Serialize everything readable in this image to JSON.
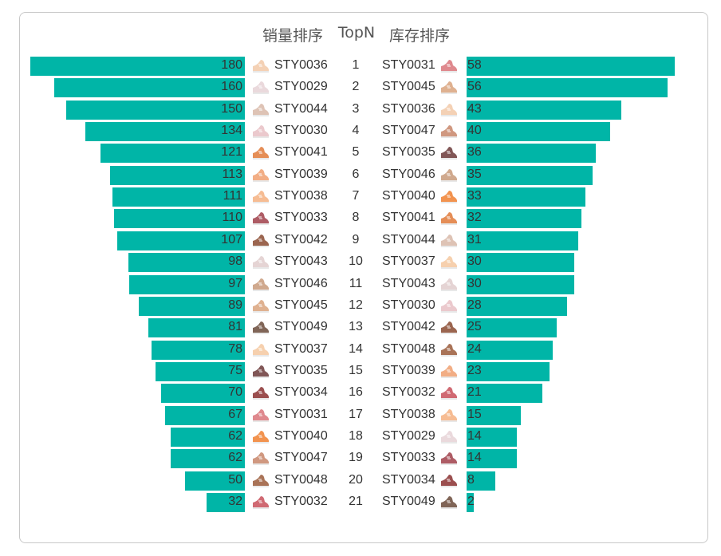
{
  "chart_data": {
    "type": "bar",
    "title_left": "销量排序",
    "title_center": "TopN",
    "title_right": "库存排序",
    "max_left": 180,
    "max_right": 58,
    "rows": [
      {
        "rank": "1",
        "sales_sku": "STY0036",
        "sales": 180,
        "sales_color": "#f2c9a8",
        "inv_sku": "STY0031",
        "inv": 58,
        "inv_color": "#d9747a"
      },
      {
        "rank": "2",
        "sales_sku": "STY0029",
        "sales": 160,
        "sales_color": "#e6d2d6",
        "inv_sku": "STY0045",
        "inv": 56,
        "inv_color": "#d9a37d"
      },
      {
        "rank": "3",
        "sales_sku": "STY0044",
        "sales": 150,
        "sales_color": "#d8b8a8",
        "inv_sku": "STY0036",
        "inv": 43,
        "inv_color": "#f2c9a8"
      },
      {
        "rank": "4",
        "sales_sku": "STY0030",
        "sales": 134,
        "sales_color": "#e8c0c4",
        "inv_sku": "STY0047",
        "inv": 40,
        "inv_color": "#c8866a"
      },
      {
        "rank": "5",
        "sales_sku": "STY0041",
        "sales": 121,
        "sales_color": "#e07a3a",
        "inv_sku": "STY0035",
        "inv": 36,
        "inv_color": "#6b3a3a"
      },
      {
        "rank": "6",
        "sales_sku": "STY0039",
        "sales": 113,
        "sales_color": "#f0a070",
        "inv_sku": "STY0046",
        "inv": 35,
        "inv_color": "#c89a7a"
      },
      {
        "rank": "7",
        "sales_sku": "STY0038",
        "sales": 111,
        "sales_color": "#f5b080",
        "inv_sku": "STY0040",
        "inv": 33,
        "inv_color": "#f08030"
      },
      {
        "rank": "8",
        "sales_sku": "STY0033",
        "sales": 110,
        "sales_color": "#a0404a",
        "inv_sku": "STY0041",
        "inv": 32,
        "inv_color": "#e07a3a"
      },
      {
        "rank": "9",
        "sales_sku": "STY0042",
        "sales": 107,
        "sales_color": "#8a4a30",
        "inv_sku": "STY0044",
        "inv": 31,
        "inv_color": "#d8b8a8"
      },
      {
        "rank": "10",
        "sales_sku": "STY0043",
        "sales": 98,
        "sales_color": "#e0cccc",
        "inv_sku": "STY0037",
        "inv": 30,
        "inv_color": "#f5c8a0"
      },
      {
        "rank": "11",
        "sales_sku": "STY0046",
        "sales": 97,
        "sales_color": "#c89a7a",
        "inv_sku": "STY0043",
        "inv": 30,
        "inv_color": "#e0cccc"
      },
      {
        "rank": "12",
        "sales_sku": "STY0045",
        "sales": 89,
        "sales_color": "#d9a37d",
        "inv_sku": "STY0030",
        "inv": 28,
        "inv_color": "#e8c0c4"
      },
      {
        "rank": "13",
        "sales_sku": "STY0049",
        "sales": 81,
        "sales_color": "#6a4a3a",
        "inv_sku": "STY0042",
        "inv": 25,
        "inv_color": "#8a4a30"
      },
      {
        "rank": "14",
        "sales_sku": "STY0037",
        "sales": 78,
        "sales_color": "#f5c8a0",
        "inv_sku": "STY0048",
        "inv": 24,
        "inv_color": "#9a5a3a"
      },
      {
        "rank": "15",
        "sales_sku": "STY0035",
        "sales": 75,
        "sales_color": "#6b3a3a",
        "inv_sku": "STY0039",
        "inv": 23,
        "inv_color": "#f0a070"
      },
      {
        "rank": "16",
        "sales_sku": "STY0034",
        "sales": 70,
        "sales_color": "#8a3030",
        "inv_sku": "STY0032",
        "inv": 21,
        "inv_color": "#c8505a"
      },
      {
        "rank": "17",
        "sales_sku": "STY0031",
        "sales": 67,
        "sales_color": "#d9747a",
        "inv_sku": "STY0038",
        "inv": 15,
        "inv_color": "#f5b080"
      },
      {
        "rank": "18",
        "sales_sku": "STY0040",
        "sales": 62,
        "sales_color": "#f08030",
        "inv_sku": "STY0029",
        "inv": 14,
        "inv_color": "#e6d2d6"
      },
      {
        "rank": "19",
        "sales_sku": "STY0047",
        "sales": 62,
        "sales_color": "#c8866a",
        "inv_sku": "STY0033",
        "inv": 14,
        "inv_color": "#a0404a"
      },
      {
        "rank": "20",
        "sales_sku": "STY0048",
        "sales": 50,
        "sales_color": "#9a5a3a",
        "inv_sku": "STY0034",
        "inv": 8,
        "inv_color": "#8a3030"
      },
      {
        "rank": "21",
        "sales_sku": "STY0032",
        "sales": 32,
        "sales_color": "#c8505a",
        "inv_sku": "STY0049",
        "inv": 2,
        "inv_color": "#6a4a3a"
      }
    ],
    "bar_color": "#00b5a7"
  }
}
